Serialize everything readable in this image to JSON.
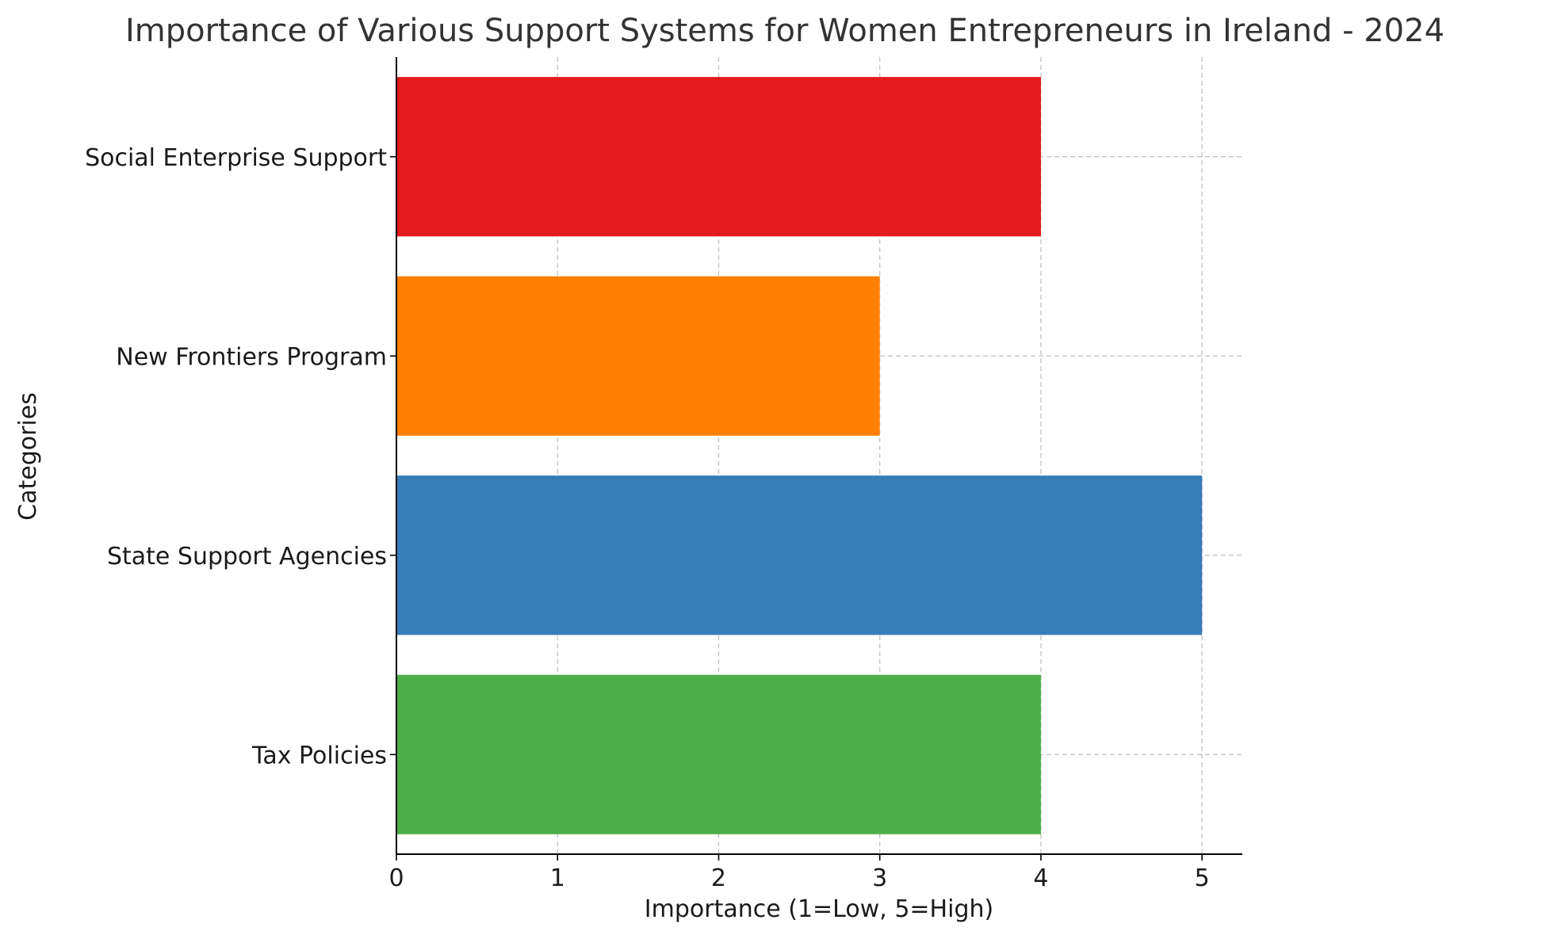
{
  "chart_data": {
    "type": "bar",
    "orientation": "horizontal",
    "title": "Importance of Various Support Systems for Women Entrepreneurs in Ireland - 2024",
    "xlabel": "Importance (1=Low, 5=High)",
    "ylabel": "Categories",
    "categories": [
      "Tax Policies",
      "State Support Agencies",
      "New Frontiers Program",
      "Social Enterprise Support"
    ],
    "values": [
      4,
      5,
      3,
      4
    ],
    "colors": [
      "#4daf4a",
      "#377eb8",
      "#ff7f00",
      "#e41a1c"
    ],
    "xlim": [
      0,
      5.25
    ],
    "xticks": [
      "0",
      "1",
      "2",
      "3",
      "4",
      "5"
    ],
    "grid": true
  }
}
